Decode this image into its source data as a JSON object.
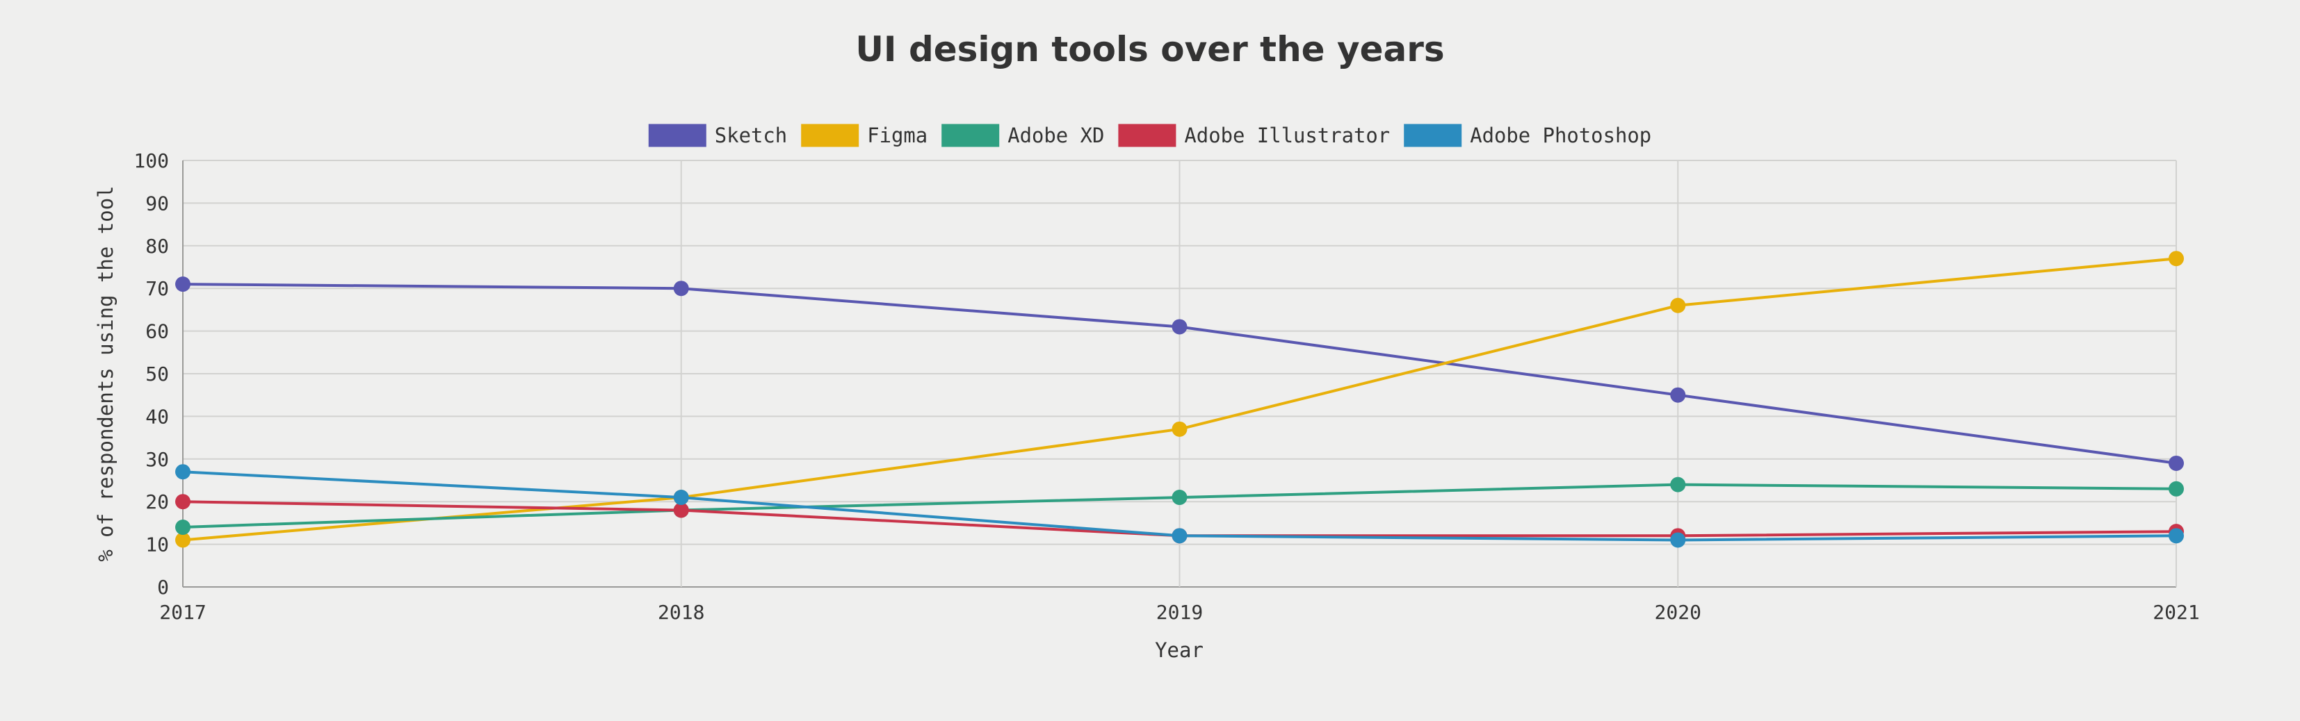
{
  "chart_data": {
    "type": "line",
    "title": "UI design tools over the years",
    "xlabel": "Year",
    "ylabel": "% of respondents using the tool",
    "x": [
      "2017",
      "2018",
      "2019",
      "2020",
      "2021"
    ],
    "ylim": [
      0,
      100
    ],
    "yticks": [
      "0",
      "10",
      "20",
      "30",
      "40",
      "50",
      "60",
      "70",
      "80",
      "90",
      "100"
    ],
    "grid": true,
    "legend_position": "top-center",
    "series": [
      {
        "name": "Sketch",
        "color": "#5957b0",
        "values": [
          71,
          70,
          61,
          45,
          29
        ]
      },
      {
        "name": "Figma",
        "color": "#e8b00a",
        "values": [
          11,
          21,
          37,
          66,
          77
        ]
      },
      {
        "name": "Adobe XD",
        "color": "#2fa082",
        "values": [
          14,
          18,
          21,
          24,
          23
        ]
      },
      {
        "name": "Adobe Illustrator",
        "color": "#c9344a",
        "values": [
          20,
          18,
          12,
          12,
          13
        ]
      },
      {
        "name": "Adobe Photoshop",
        "color": "#2b8cbf",
        "values": [
          27,
          21,
          12,
          11,
          12
        ]
      }
    ]
  }
}
